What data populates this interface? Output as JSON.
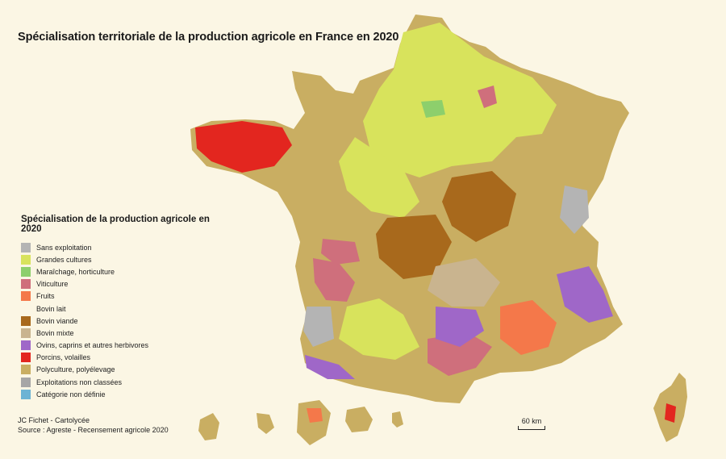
{
  "title": "Spécialisation territoriale de la production agricole en France en 2020",
  "legend": {
    "title": "Spécialisation de la production agricole en 2020",
    "items": [
      {
        "label": "Sans exploitation",
        "color": "#b4b4b4"
      },
      {
        "label": "Grandes cultures",
        "color": "#d8e35c"
      },
      {
        "label": "Maraîchage, horticulture",
        "color": "#8dcf6c"
      },
      {
        "label": "Viticulture",
        "color": "#cf6f7c"
      },
      {
        "label": "Fruits",
        "color": "#f4784a"
      },
      {
        "label": "Bovin lait",
        "color": ""
      },
      {
        "label": "Bovin viande",
        "color": "#a8691c"
      },
      {
        "label": "Bovin mixte",
        "color": "#c9b48f"
      },
      {
        "label": "Ovins, caprins et autres herbivores",
        "color": "#9f67c8"
      },
      {
        "label": "Porcins, volailles",
        "color": "#e3261f"
      },
      {
        "label": "Polyculture, polyélevage",
        "color": "#c9ae62"
      },
      {
        "label": "Exploitations non classées",
        "color": "#a6a6a6"
      },
      {
        "label": "Catégorie non définie",
        "color": "#6cb3d4"
      }
    ]
  },
  "credits": {
    "author": "JC Fichet - Cartolycée",
    "source": "Source : Agreste - Recensement agricole 2020"
  },
  "scale": {
    "label": "60 km"
  }
}
